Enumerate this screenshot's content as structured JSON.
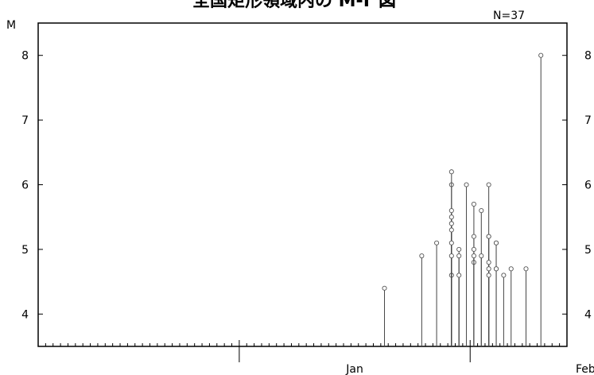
{
  "chart_data": {
    "type": "stem",
    "title": "全国矩形領域内の M-T 図",
    "count_label": "N=37",
    "ylabel": "M",
    "ylim": [
      3.5,
      8.5
    ],
    "yticks": [
      4,
      5,
      6,
      7,
      8
    ],
    "xlim": [
      "2010-12-05",
      "2011-02-14"
    ],
    "x_month_labels": [
      {
        "date": "2011-01-01",
        "label": "Jan"
      },
      {
        "date": "2011-02-01",
        "label": "Feb"
      }
    ],
    "points": [
      {
        "date": "2011-01-20",
        "m": 4.4
      },
      {
        "date": "2011-01-25",
        "m": 4.9
      },
      {
        "date": "2011-01-27",
        "m": 5.1
      },
      {
        "date": "2011-01-29",
        "m": 6.0
      },
      {
        "date": "2011-01-29",
        "m": 4.6
      },
      {
        "date": "2011-01-29",
        "m": 6.2
      },
      {
        "date": "2011-01-29",
        "m": 5.6
      },
      {
        "date": "2011-01-29",
        "m": 5.5
      },
      {
        "date": "2011-01-29",
        "m": 5.4
      },
      {
        "date": "2011-01-29",
        "m": 5.3
      },
      {
        "date": "2011-01-29",
        "m": 5.1
      },
      {
        "date": "2011-01-29",
        "m": 4.9
      },
      {
        "date": "2011-01-30",
        "m": 5.0
      },
      {
        "date": "2011-01-30",
        "m": 4.9
      },
      {
        "date": "2011-01-30",
        "m": 4.6
      },
      {
        "date": "2011-01-31",
        "m": 6.0
      },
      {
        "date": "2011-02-01",
        "m": 5.7
      },
      {
        "date": "2011-02-01",
        "m": 5.2
      },
      {
        "date": "2011-02-01",
        "m": 4.8
      },
      {
        "date": "2011-02-01",
        "m": 5.0
      },
      {
        "date": "2011-02-01",
        "m": 4.9
      },
      {
        "date": "2011-02-02",
        "m": 5.6
      },
      {
        "date": "2011-02-02",
        "m": 4.9
      },
      {
        "date": "2011-02-03",
        "m": 6.0
      },
      {
        "date": "2011-02-03",
        "m": 5.2
      },
      {
        "date": "2011-02-03",
        "m": 5.2
      },
      {
        "date": "2011-02-03",
        "m": 4.8
      },
      {
        "date": "2011-02-03",
        "m": 4.7
      },
      {
        "date": "2011-02-03",
        "m": 4.6
      },
      {
        "date": "2011-02-04",
        "m": 5.1
      },
      {
        "date": "2011-02-04",
        "m": 5.1
      },
      {
        "date": "2011-02-04",
        "m": 4.7
      },
      {
        "date": "2011-02-04",
        "m": 4.7
      },
      {
        "date": "2011-02-05",
        "m": 4.6
      },
      {
        "date": "2011-02-06",
        "m": 4.7
      },
      {
        "date": "2011-02-08",
        "m": 4.7
      },
      {
        "date": "2011-02-10",
        "m": 8.0
      }
    ]
  }
}
